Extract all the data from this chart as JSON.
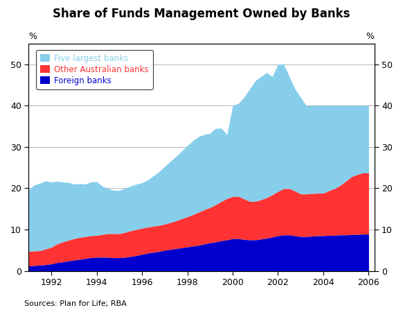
{
  "title": "Share of Funds Management Owned by Banks",
  "ylabel_left": "%",
  "ylabel_right": "%",
  "source": "Sources: Plan for Life; RBA",
  "ylim": [
    0,
    55
  ],
  "yticks": [
    0,
    10,
    20,
    30,
    40,
    50
  ],
  "xticks": [
    1992,
    1994,
    1996,
    1998,
    2000,
    2002,
    2004,
    2006
  ],
  "legend": [
    {
      "label": "Five largest banks",
      "color": "#87CEEB"
    },
    {
      "label": "Other Australian banks",
      "color": "#FF3333"
    },
    {
      "label": "Foreign banks",
      "color": "#0000CC"
    }
  ],
  "years": [
    1991.0,
    1991.25,
    1991.5,
    1991.75,
    1992.0,
    1992.25,
    1992.5,
    1992.75,
    1993.0,
    1993.25,
    1993.5,
    1993.75,
    1994.0,
    1994.25,
    1994.5,
    1994.75,
    1995.0,
    1995.25,
    1995.5,
    1995.75,
    1996.0,
    1996.25,
    1996.5,
    1996.75,
    1997.0,
    1997.25,
    1997.5,
    1997.75,
    1998.0,
    1998.25,
    1998.5,
    1998.75,
    1999.0,
    1999.25,
    1999.5,
    1999.75,
    2000.0,
    2000.25,
    2000.5,
    2000.75,
    2001.0,
    2001.25,
    2001.5,
    2001.75,
    2002.0,
    2002.25,
    2002.5,
    2002.75,
    2003.0,
    2003.25,
    2003.5,
    2003.75,
    2004.0,
    2004.25,
    2004.5,
    2004.75,
    2005.0,
    2005.25,
    2005.5,
    2005.75,
    2006.0
  ],
  "foreign_banks": [
    1.2,
    1.3,
    1.4,
    1.5,
    1.7,
    2.0,
    2.2,
    2.4,
    2.6,
    2.8,
    3.0,
    3.2,
    3.3,
    3.3,
    3.3,
    3.2,
    3.2,
    3.3,
    3.5,
    3.7,
    4.0,
    4.3,
    4.5,
    4.7,
    5.0,
    5.2,
    5.4,
    5.6,
    5.8,
    6.0,
    6.2,
    6.5,
    6.8,
    7.0,
    7.3,
    7.5,
    7.8,
    7.8,
    7.6,
    7.5,
    7.5,
    7.7,
    7.9,
    8.2,
    8.5,
    8.7,
    8.7,
    8.5,
    8.3,
    8.3,
    8.4,
    8.5,
    8.5,
    8.6,
    8.6,
    8.7,
    8.7,
    8.8,
    8.8,
    8.9,
    8.9
  ],
  "other_aus_banks": [
    3.5,
    3.5,
    3.5,
    3.8,
    4.0,
    4.5,
    4.8,
    5.0,
    5.2,
    5.3,
    5.3,
    5.3,
    5.3,
    5.5,
    5.7,
    5.8,
    5.8,
    6.0,
    6.2,
    6.3,
    6.3,
    6.3,
    6.3,
    6.3,
    6.3,
    6.5,
    6.7,
    7.0,
    7.3,
    7.6,
    8.0,
    8.3,
    8.5,
    9.0,
    9.5,
    10.0,
    10.2,
    10.2,
    9.8,
    9.3,
    9.3,
    9.5,
    9.8,
    10.2,
    10.7,
    11.2,
    11.2,
    10.8,
    10.3,
    10.3,
    10.3,
    10.3,
    10.3,
    10.8,
    11.3,
    12.0,
    13.0,
    14.0,
    14.5,
    14.8,
    14.8
  ],
  "five_largest": [
    15.0,
    16.0,
    16.3,
    16.5,
    15.8,
    15.2,
    14.5,
    14.0,
    13.2,
    13.0,
    12.7,
    13.0,
    13.0,
    11.7,
    11.0,
    10.5,
    10.5,
    10.7,
    10.8,
    11.0,
    11.0,
    11.4,
    12.2,
    13.0,
    14.0,
    14.8,
    15.6,
    16.4,
    17.2,
    17.9,
    18.3,
    18.2,
    18.0,
    18.5,
    17.7,
    15.5,
    22.0,
    22.5,
    24.6,
    27.2,
    29.2,
    29.8,
    30.3,
    28.6,
    30.8,
    30.1,
    27.1,
    24.7,
    23.4,
    21.4,
    21.3,
    21.2,
    21.2,
    20.6,
    20.1,
    19.3,
    18.3,
    17.2,
    16.7,
    16.3,
    16.3
  ],
  "background_color": "#FFFFFF",
  "grid_color": "#AAAAAA",
  "five_largest_color": "#87CEEB",
  "other_aus_color": "#FF3333",
  "foreign_color": "#0000CC"
}
